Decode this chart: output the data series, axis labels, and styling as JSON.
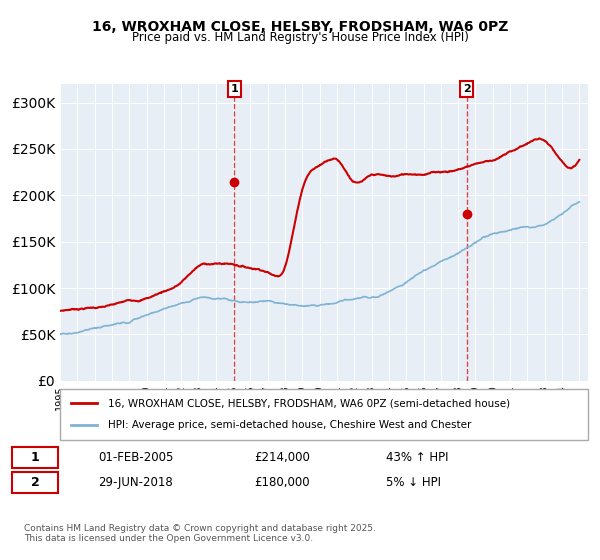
{
  "title": "16, WROXHAM CLOSE, HELSBY, FRODSHAM, WA6 0PZ",
  "subtitle": "Price paid vs. HM Land Registry's House Price Index (HPI)",
  "hpi_color": "#7fb3d3",
  "price_color": "#cc0000",
  "bg_color": "#e8f0f8",
  "plot_bg": "#f0f4f8",
  "ylim": [
    0,
    320000
  ],
  "xlim_start": 1995.0,
  "xlim_end": 2025.5,
  "legend_label_price": "16, WROXHAM CLOSE, HELSBY, FRODSHAM, WA6 0PZ (semi-detached house)",
  "legend_label_hpi": "HPI: Average price, semi-detached house, Cheshire West and Chester",
  "marker1_x": 2005.08,
  "marker1_y": 214000,
  "marker2_x": 2018.5,
  "marker2_y": 180000,
  "annotation1_label": "1",
  "annotation2_label": "2",
  "footer": "Contains HM Land Registry data © Crown copyright and database right 2025.\nThis data is licensed under the Open Government Licence v3.0.",
  "info1_num": "1",
  "info1_date": "01-FEB-2005",
  "info1_price": "£214,000",
  "info1_hpi": "43% ↑ HPI",
  "info2_num": "2",
  "info2_date": "29-JUN-2018",
  "info2_price": "£180,000",
  "info2_hpi": "5% ↓ HPI"
}
